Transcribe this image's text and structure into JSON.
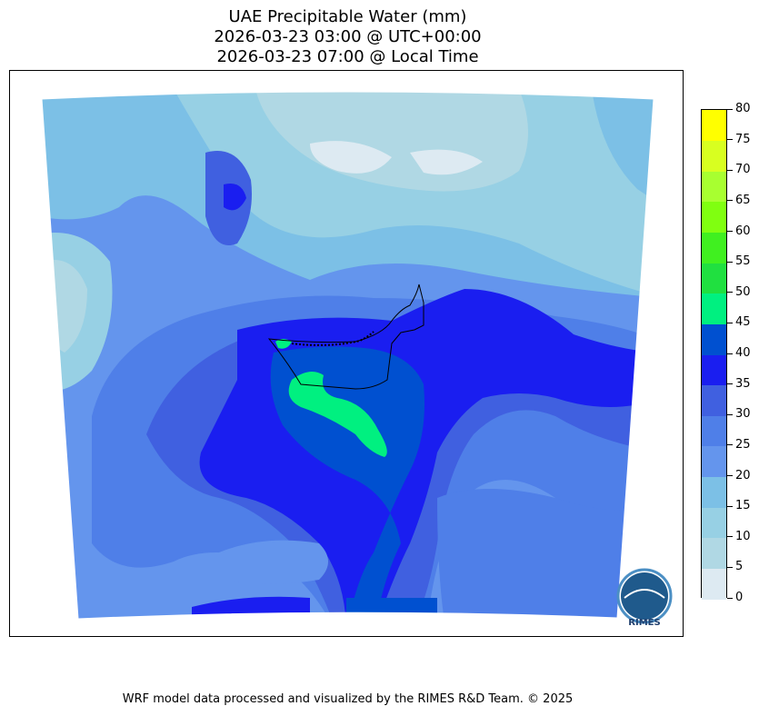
{
  "title": {
    "line1": "UAE Precipitable Water (mm)",
    "line2": "2026-03-23 03:00 @ UTC+00:00",
    "line3": "2026-03-23 07:00 @ Local Time"
  },
  "colorbar": {
    "levels": [
      0,
      5,
      10,
      15,
      20,
      25,
      30,
      35,
      40,
      45,
      50,
      55,
      60,
      65,
      70,
      75,
      80
    ],
    "colors": [
      "#ddeaf2",
      "#b0d8e4",
      "#97d0e4",
      "#7cc0e6",
      "#6495ed",
      "#4f7fe8",
      "#4060e0",
      "#1a1ef0",
      "#0050d0",
      "#00f080",
      "#20e040",
      "#40f020",
      "#80ff10",
      "#a8ff30",
      "#d8ff20",
      "#ffff00",
      "#ffd000"
    ]
  },
  "logo": {
    "text": "RIMES"
  },
  "footer": "WRF model data processed and visualized by the RIMES R&D Team. © 2025"
}
